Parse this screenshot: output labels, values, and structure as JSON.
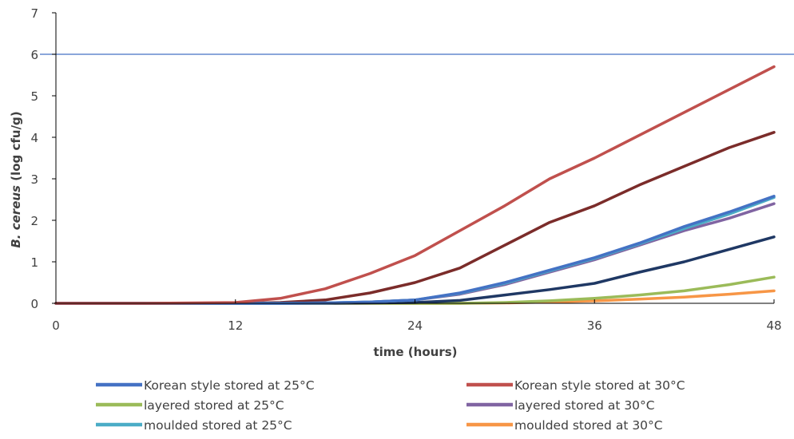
{
  "chart_data": {
    "type": "line",
    "xlabel": "time (hours)",
    "ylabel_italic": "B. cereus",
    "ylabel_rest": " (log cfu/g)",
    "xlim": [
      0,
      48
    ],
    "ylim": [
      0,
      7
    ],
    "x_ticks": [
      "0",
      "12",
      "24",
      "36",
      "48"
    ],
    "y_ticks": [
      "0",
      "1",
      "2",
      "3",
      "4",
      "5",
      "6",
      "7"
    ],
    "grid": false,
    "reference_line": {
      "y": 6,
      "color": "#4472c4"
    },
    "legend_position": "bottom",
    "x": [
      0,
      6,
      12,
      15,
      18,
      21,
      24,
      27,
      30,
      33,
      36,
      39,
      42,
      45,
      48
    ],
    "series": [
      {
        "name": "Korean style stored at 25°C",
        "color": "#4472c4",
        "values": [
          0,
          0,
          0,
          0,
          0.01,
          0.03,
          0.08,
          0.25,
          0.5,
          0.8,
          1.1,
          1.45,
          1.85,
          2.2,
          2.58
        ]
      },
      {
        "name": "Korean style stored at 30°C",
        "color": "#c0504d",
        "values": [
          0,
          0,
          0.02,
          0.12,
          0.35,
          0.72,
          1.15,
          1.75,
          2.35,
          3.0,
          3.5,
          4.05,
          4.6,
          5.15,
          5.7
        ]
      },
      {
        "name": "layered stored at 25°C",
        "color": "#9bbb59",
        "values": [
          0,
          0,
          0,
          0,
          0,
          0,
          0,
          0,
          0.02,
          0.06,
          0.12,
          0.2,
          0.3,
          0.45,
          0.63
        ]
      },
      {
        "name": "layered stored at 30°C",
        "color": "#8064a2",
        "values": [
          0,
          0,
          0,
          0,
          0.01,
          0.03,
          0.08,
          0.22,
          0.45,
          0.75,
          1.05,
          1.4,
          1.75,
          2.05,
          2.4
        ]
      },
      {
        "name": "moulded stored at 25°C",
        "color": "#4bacc6",
        "values": [
          0,
          0,
          0,
          0,
          0.01,
          0.03,
          0.08,
          0.24,
          0.48,
          0.78,
          1.08,
          1.43,
          1.8,
          2.15,
          2.55
        ]
      },
      {
        "name": "moulded stored at 30°C",
        "color": "#f79646",
        "values": [
          0,
          0,
          0,
          0,
          0,
          0,
          0,
          0,
          0.01,
          0.03,
          0.06,
          0.1,
          0.15,
          0.22,
          0.3
        ]
      },
      {
        "name": "",
        "color": "#7b2c2a",
        "values": [
          0,
          0,
          0,
          0.02,
          0.08,
          0.25,
          0.5,
          0.85,
          1.4,
          1.95,
          2.35,
          2.85,
          3.3,
          3.75,
          4.12
        ]
      },
      {
        "name": "",
        "color": "#1f3864",
        "values": [
          0,
          0,
          0,
          0,
          0,
          0.01,
          0.02,
          0.07,
          0.2,
          0.33,
          0.48,
          0.75,
          1.0,
          1.3,
          1.6
        ]
      }
    ]
  }
}
